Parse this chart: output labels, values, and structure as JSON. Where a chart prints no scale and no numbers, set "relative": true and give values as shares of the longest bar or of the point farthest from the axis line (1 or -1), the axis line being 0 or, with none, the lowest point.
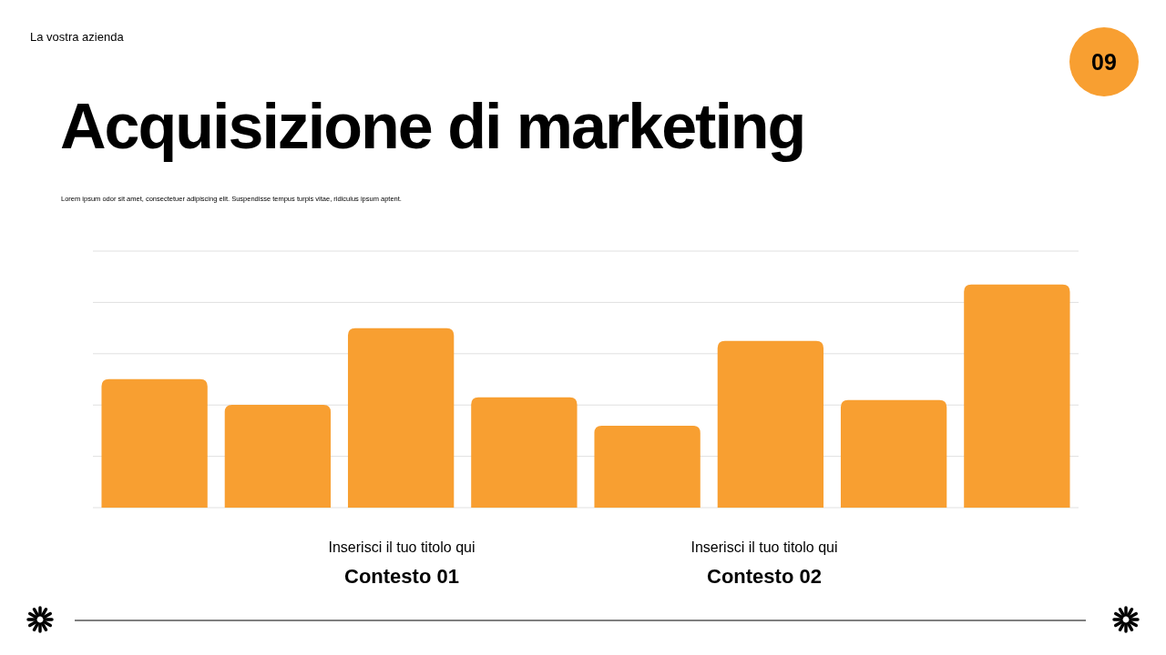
{
  "chart_data": {
    "type": "bar",
    "title": "Acquisizione di marketing",
    "subtitle": "Lorem ipsum odor sit amet, consectetuer adipiscing elit. Suspendisse tempus turpis vitae, ridiculus ipsum aptent.",
    "categories": [
      null,
      null,
      null,
      null,
      null,
      null,
      null,
      null
    ],
    "values": [
      0.576,
      0.461,
      0.804,
      0.494,
      0.367,
      0.747,
      0.482,
      1
    ],
    "color": "#f89f31",
    "relative": true,
    "grid": true,
    "annotations": [
      "La vostra azienda",
      "09",
      "Inserisci il tuo titolo qui",
      "Contesto 01",
      "Inserisci il tuo titolo qui",
      "Contesto 02"
    ]
  }
}
